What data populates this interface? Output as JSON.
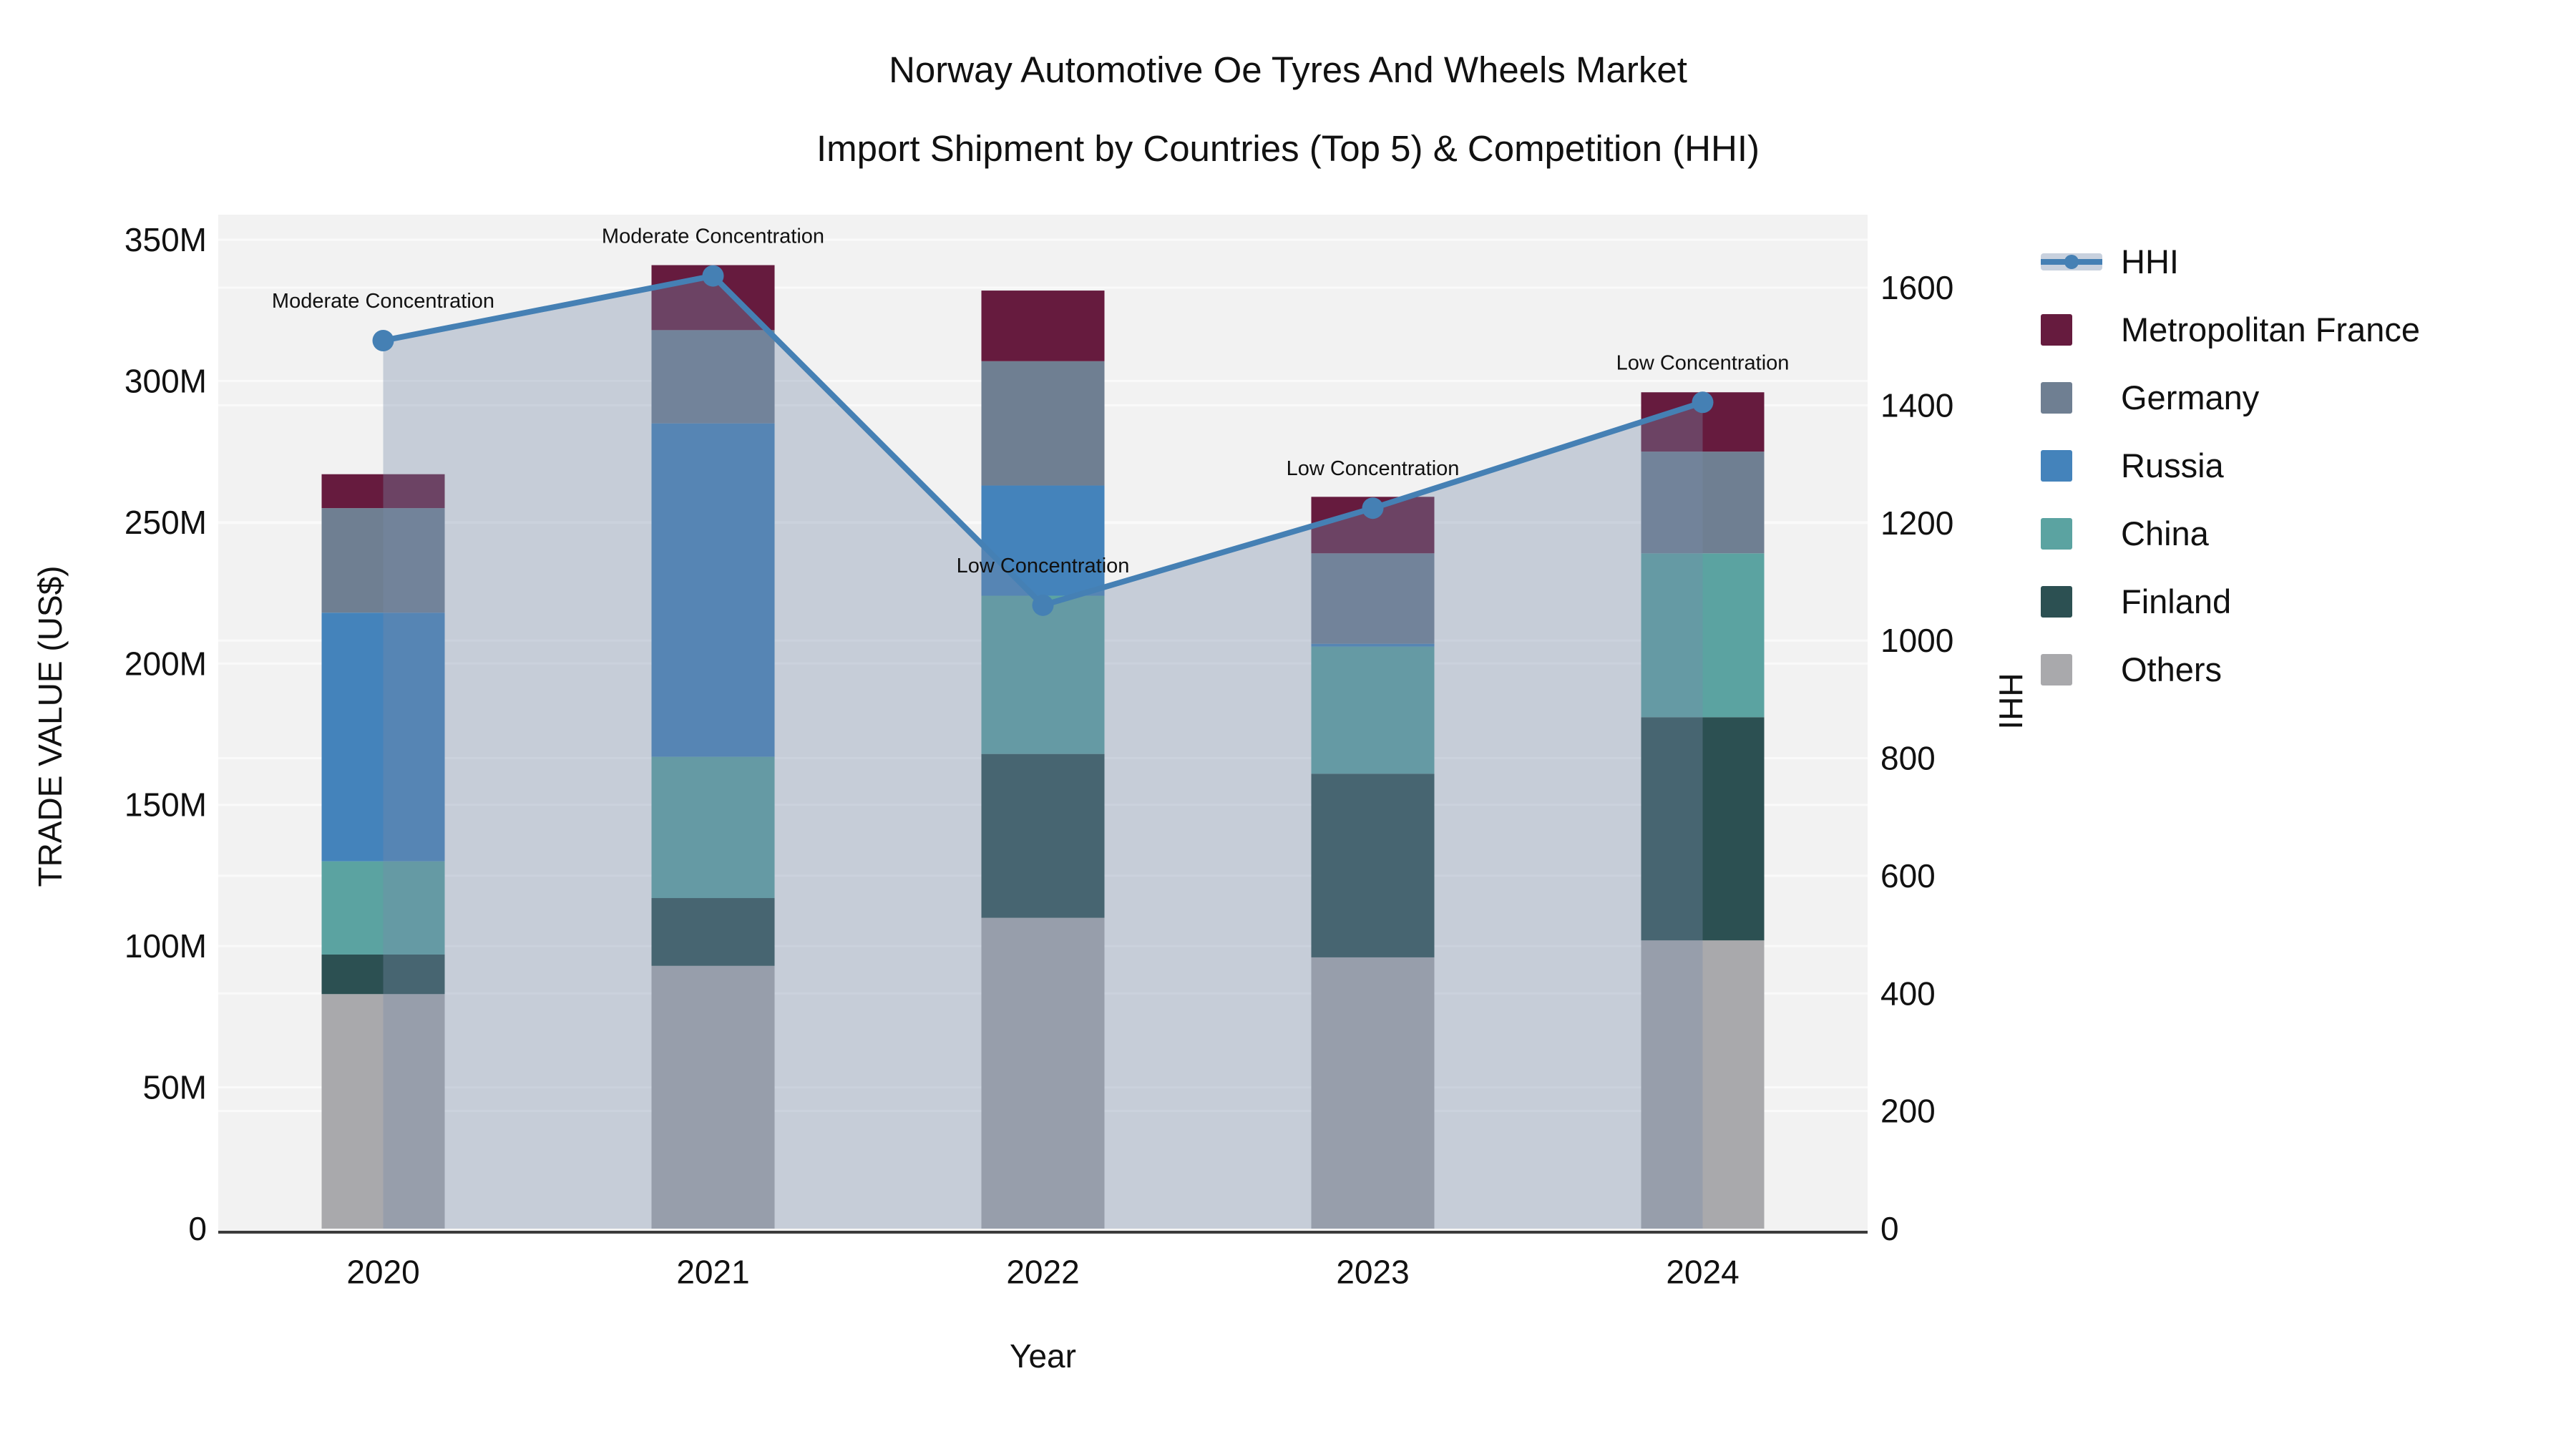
{
  "title": {
    "line1": "Norway Automotive Oe Tyres And Wheels Market",
    "line2": "Import Shipment by Countries (Top 5) & Competition (HHI)"
  },
  "colors": {
    "page_background": "#ffffff",
    "plot_background": "#f2f2f2",
    "grid": "#fafafa",
    "axis_line": "#3b3b3b",
    "text": "#111111",
    "hhi_line": "#4580b4",
    "hhi_fill": "rgba(120,138,170,0.36)",
    "legend_hhi_band": "#c8d1de"
  },
  "chart_data": {
    "type": "stacked-bar+line",
    "x_axis": {
      "title": "Year",
      "ticks": [
        "2020",
        "2021",
        "2022",
        "2023",
        "2024"
      ]
    },
    "left_axis": {
      "title": "TRADE VALUE (US$)",
      "max": 350,
      "unit": "M",
      "ticks": [
        {
          "v": 0,
          "label": "0"
        },
        {
          "v": 50,
          "label": "50M"
        },
        {
          "v": 100,
          "label": "100M"
        },
        {
          "v": 150,
          "label": "150M"
        },
        {
          "v": 200,
          "label": "200M"
        },
        {
          "v": 250,
          "label": "250M"
        },
        {
          "v": 300,
          "label": "300M"
        },
        {
          "v": 350,
          "label": "350M"
        }
      ]
    },
    "right_axis": {
      "title": "HHI",
      "max": 1600,
      "ticks": [
        {
          "v": 0,
          "label": "0"
        },
        {
          "v": 200,
          "label": "200"
        },
        {
          "v": 400,
          "label": "400"
        },
        {
          "v": 600,
          "label": "600"
        },
        {
          "v": 800,
          "label": "800"
        },
        {
          "v": 1000,
          "label": "1000"
        },
        {
          "v": 1200,
          "label": "1200"
        },
        {
          "v": 1400,
          "label": "1400"
        },
        {
          "v": 1600,
          "label": "1600"
        }
      ]
    },
    "categories": [
      "2020",
      "2021",
      "2022",
      "2023",
      "2024"
    ],
    "stack_order": "bottom_to_top",
    "series": [
      {
        "name": "Others",
        "color": "#a9a9ac",
        "values": [
          83,
          93,
          110,
          96,
          102
        ]
      },
      {
        "name": "Finland",
        "color": "#2c5052",
        "values": [
          14,
          24,
          58,
          65,
          79
        ]
      },
      {
        "name": "China",
        "color": "#5ba3a1",
        "values": [
          33,
          50,
          56,
          45,
          58
        ]
      },
      {
        "name": "Russia",
        "color": "#4483bb",
        "values": [
          88,
          118,
          39,
          1,
          0
        ]
      },
      {
        "name": "Germany",
        "color": "#6f7f92",
        "values": [
          37,
          33,
          44,
          32,
          36
        ]
      },
      {
        "name": "Metropolitan France",
        "color": "#661b3e",
        "values": [
          12,
          23,
          25,
          20,
          21
        ]
      }
    ],
    "bar_totals": [
      267,
      341,
      332,
      259,
      296
    ],
    "line": {
      "name": "HHI",
      "values": [
        1510,
        1620,
        1060,
        1225,
        1405
      ]
    },
    "annotations": [
      "Moderate Concentration",
      "Moderate Concentration",
      "Low Concentration",
      "Low Concentration",
      "Low Concentration"
    ],
    "legend": [
      {
        "label": "HHI",
        "type": "line"
      },
      {
        "label": "Metropolitan France",
        "type": "swatch",
        "color": "#661b3e"
      },
      {
        "label": "Germany",
        "type": "swatch",
        "color": "#6f7f92"
      },
      {
        "label": "Russia",
        "type": "swatch",
        "color": "#4483bb"
      },
      {
        "label": "China",
        "type": "swatch",
        "color": "#5ba3a1"
      },
      {
        "label": "Finland",
        "type": "swatch",
        "color": "#2c5052"
      },
      {
        "label": "Others",
        "type": "swatch",
        "color": "#a9a9ac"
      }
    ]
  }
}
